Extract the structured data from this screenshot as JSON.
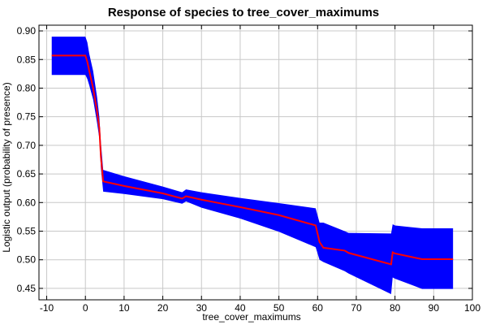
{
  "chart_data": {
    "type": "line",
    "title": "Response of species to tree_cover_maximums",
    "xlabel": "tree_cover_maximums",
    "ylabel": "Logistic output (probability of presence)",
    "xlim": [
      -12,
      100
    ],
    "ylim": [
      0.43,
      0.91
    ],
    "xticks": [
      -10,
      0,
      10,
      20,
      30,
      40,
      50,
      60,
      70,
      80,
      90,
      100
    ],
    "yticks": [
      0.45,
      0.5,
      0.55,
      0.6,
      0.65,
      0.7,
      0.75,
      0.8,
      0.85,
      0.9
    ],
    "grid": true,
    "colors": {
      "mean": "#ff0000",
      "band": "#0000ff",
      "grid": "#c8c8c8"
    },
    "series": [
      {
        "x": [
          -8.7,
          0.0,
          0.5,
          1.0,
          2.0,
          3.0,
          3.6,
          4.0,
          4.6,
          10,
          20,
          25.0,
          26.0,
          30,
          40,
          50,
          59.5,
          60.5,
          61.5,
          67.0,
          68,
          79.0,
          79.4,
          80,
          87,
          95
        ],
        "y": [
          0.857,
          0.857,
          0.846,
          0.83,
          0.8,
          0.76,
          0.73,
          0.68,
          0.637,
          0.629,
          0.616,
          0.607,
          0.611,
          0.605,
          0.592,
          0.578,
          0.56,
          0.531,
          0.521,
          0.516,
          0.512,
          0.492,
          0.513,
          0.511,
          0.501,
          0.501
        ]
      },
      {
        "x": [
          -8.7,
          0.0,
          0.5,
          1.0,
          2.0,
          3.0,
          3.6,
          4.0,
          4.6,
          10,
          20,
          25.0,
          26.0,
          30,
          40,
          50,
          59.5,
          60.5,
          61.5,
          67.0,
          68,
          79.0,
          79.4,
          80,
          87,
          95
        ],
        "y_low": [
          0.823,
          0.823,
          0.816,
          0.805,
          0.78,
          0.74,
          0.712,
          0.66,
          0.619,
          0.615,
          0.606,
          0.598,
          0.602,
          0.591,
          0.572,
          0.549,
          0.522,
          0.5,
          0.496,
          0.48,
          0.476,
          0.44,
          0.469,
          0.467,
          0.449,
          0.449
        ],
        "y_high": [
          0.89,
          0.89,
          0.88,
          0.86,
          0.83,
          0.785,
          0.75,
          0.705,
          0.657,
          0.646,
          0.628,
          0.618,
          0.623,
          0.618,
          0.608,
          0.599,
          0.59,
          0.565,
          0.565,
          0.55,
          0.547,
          0.546,
          0.562,
          0.56,
          0.555,
          0.555
        ]
      }
    ]
  }
}
